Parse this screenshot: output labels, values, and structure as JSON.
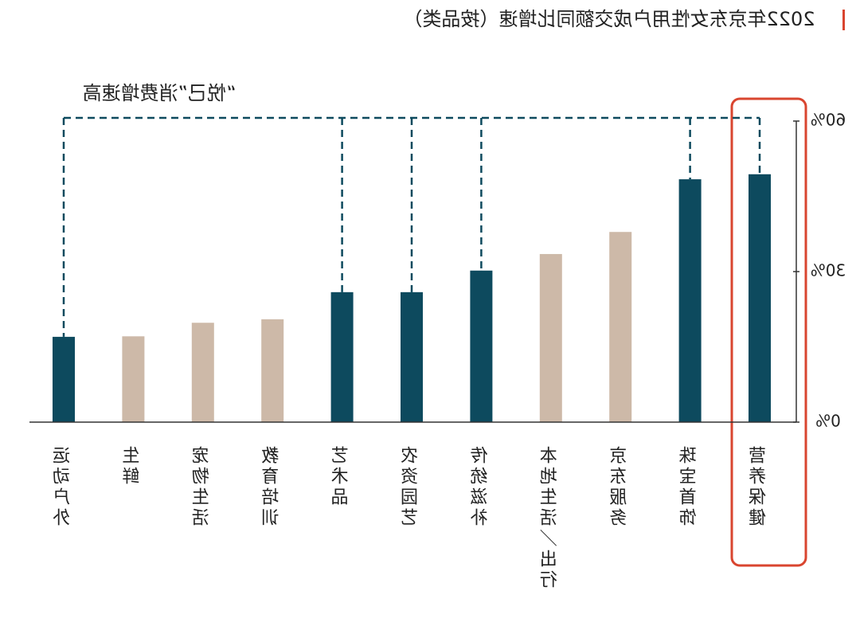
{
  "chart_data": {
    "type": "bar",
    "title": "2022年京东女性用户成交额同比增速（按品类）",
    "annotation": "“悦己”消费增速高",
    "categories": [
      "运动户外",
      "生鲜",
      "宠物生活",
      "教育培训",
      "艺术品",
      "农资园艺",
      "传统滋补",
      "本地生活／出行",
      "京东服务",
      "珠宝首饰",
      "营养保健"
    ],
    "values": [
      17.0,
      17.1,
      19.8,
      20.5,
      25.9,
      25.9,
      30.2,
      33.5,
      37.9,
      48.4,
      49.4
    ],
    "colors": [
      "#0d4a5e",
      "#cdb9a8",
      "#cdb9a8",
      "#cdb9a8",
      "#0d4a5e",
      "#0d4a5e",
      "#0d4a5e",
      "#cdb9a8",
      "#cdb9a8",
      "#0d4a5e",
      "#0d4a5e"
    ],
    "ylim": [
      0,
      60
    ],
    "yticks": [
      {
        "value": 0,
        "label": "0%"
      },
      {
        "value": 30,
        "label": "30%"
      },
      {
        "value": 60,
        "label": "60%"
      }
    ]
  }
}
